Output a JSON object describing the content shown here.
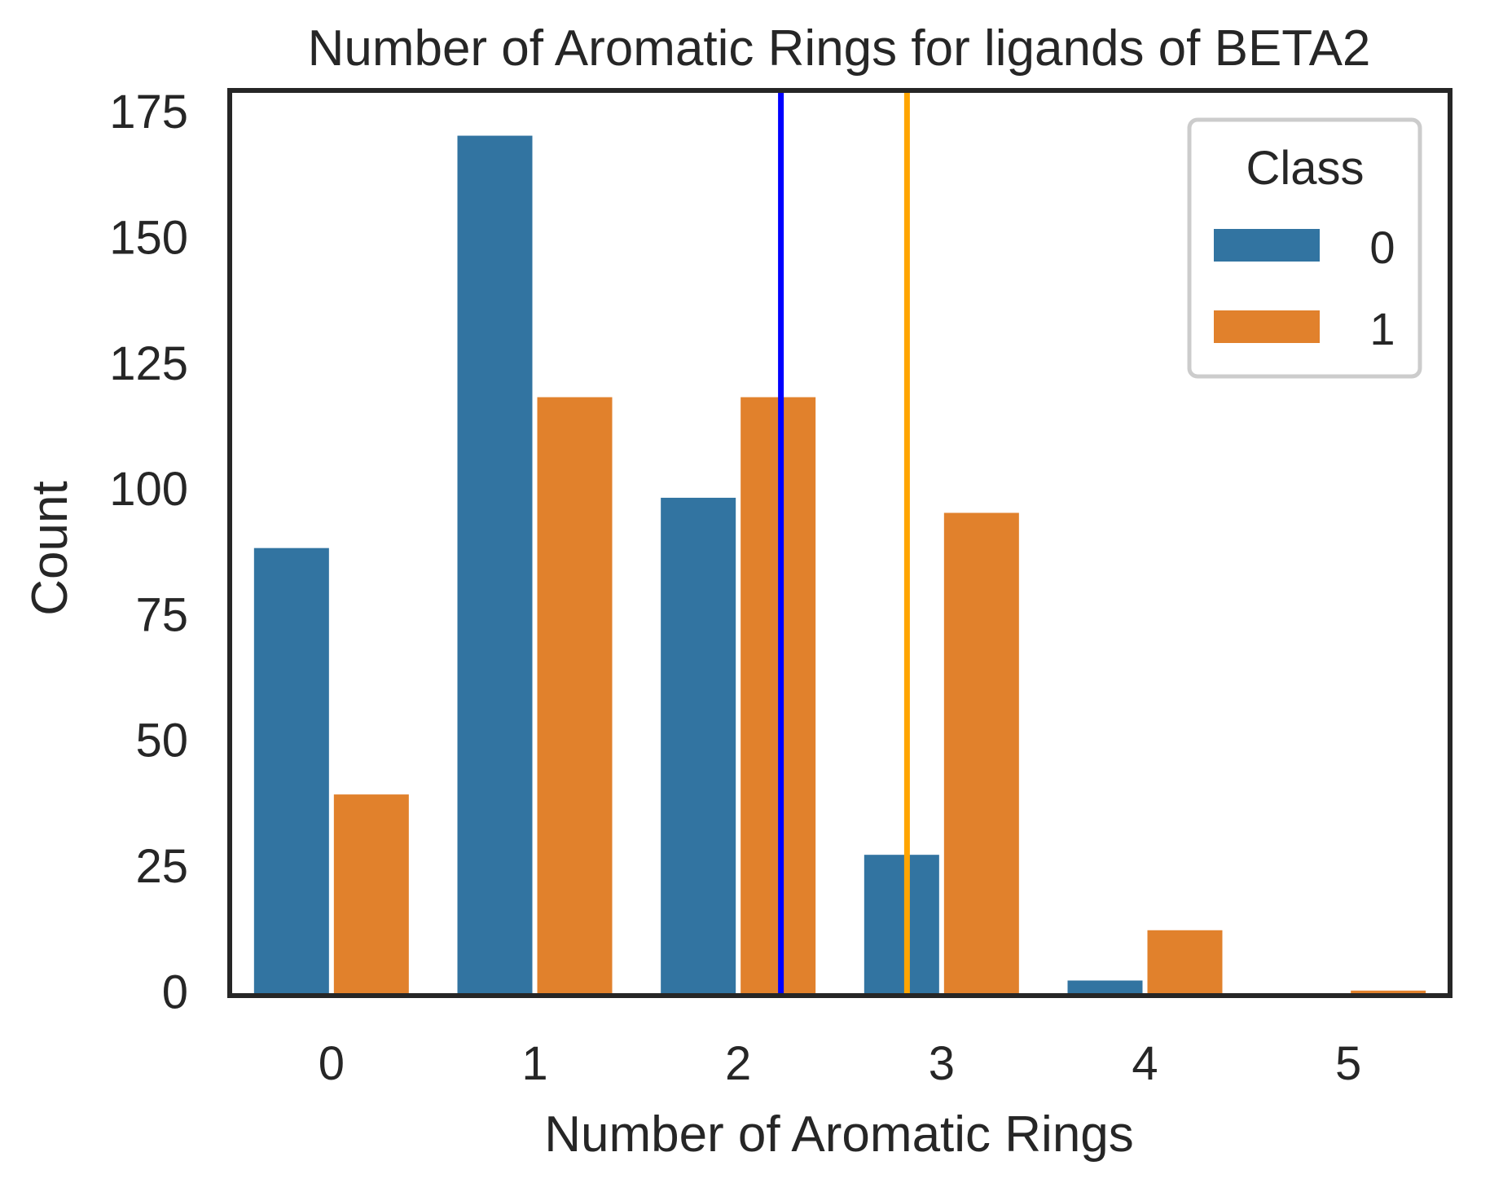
{
  "chart_data": {
    "type": "bar",
    "title": "Number of Aromatic Rings for ligands of BETA2",
    "xlabel": "Number of Aromatic Rings",
    "ylabel": "Count",
    "categories": [
      "0",
      "1",
      "2",
      "3",
      "4",
      "5"
    ],
    "ylim": [
      0,
      180
    ],
    "yticks": [
      0,
      25,
      50,
      75,
      100,
      125,
      150,
      175
    ],
    "series": [
      {
        "name": "0",
        "color": "#3274a1",
        "values": [
          89,
          171,
          99,
          28,
          3,
          0
        ]
      },
      {
        "name": "1",
        "color": "#e1812c",
        "values": [
          40,
          119,
          119,
          96,
          13,
          1
        ]
      }
    ],
    "reference_lines": [
      {
        "x": 2.21,
        "color": "#0000ff"
      },
      {
        "x": 2.83,
        "color": "#ffa500"
      }
    ],
    "legend": {
      "title": "Class",
      "placement": "top-right"
    },
    "grid": false
  }
}
